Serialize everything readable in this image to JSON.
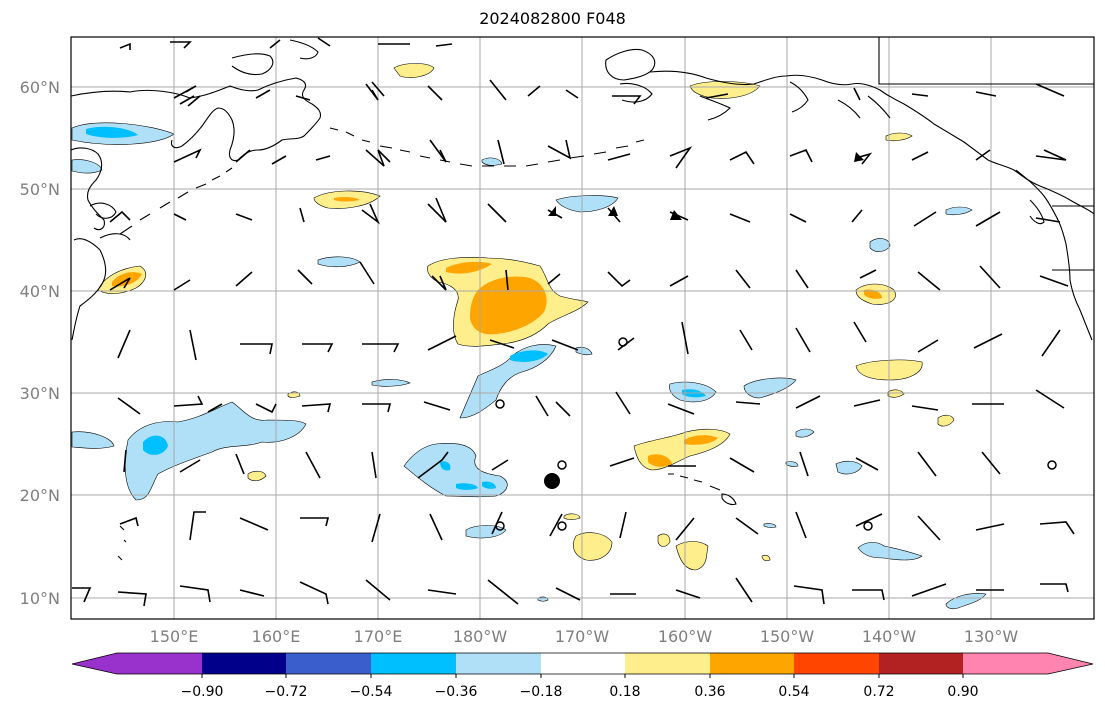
{
  "title": "2024082800 F048",
  "lat_labels": [
    "60°N",
    "50°N",
    "40°N",
    "30°N",
    "20°N",
    "10°N"
  ],
  "lon_labels": [
    "150°E",
    "160°E",
    "170°E",
    "180°W",
    "170°W",
    "160°W",
    "150°W",
    "140°W",
    "130°W"
  ],
  "colorbar": {
    "ticks": [
      "−0.90",
      "−0.72",
      "−0.54",
      "−0.36",
      "−0.18",
      "0.18",
      "0.36",
      "0.54",
      "0.72",
      "0.90"
    ],
    "colors": [
      "#9932cc",
      "#00008b",
      "#3a5fcd",
      "#00bfff",
      "#b0e0f8",
      "#ffffff",
      "#ffee8c",
      "#ffa500",
      "#ff4500",
      "#b22222",
      "#ff85b0"
    ]
  },
  "colors": {
    "light_blue": "#b0e0f8",
    "blue": "#00bfff",
    "light_yellow": "#ffee8c",
    "orange": "#ffa500"
  }
}
